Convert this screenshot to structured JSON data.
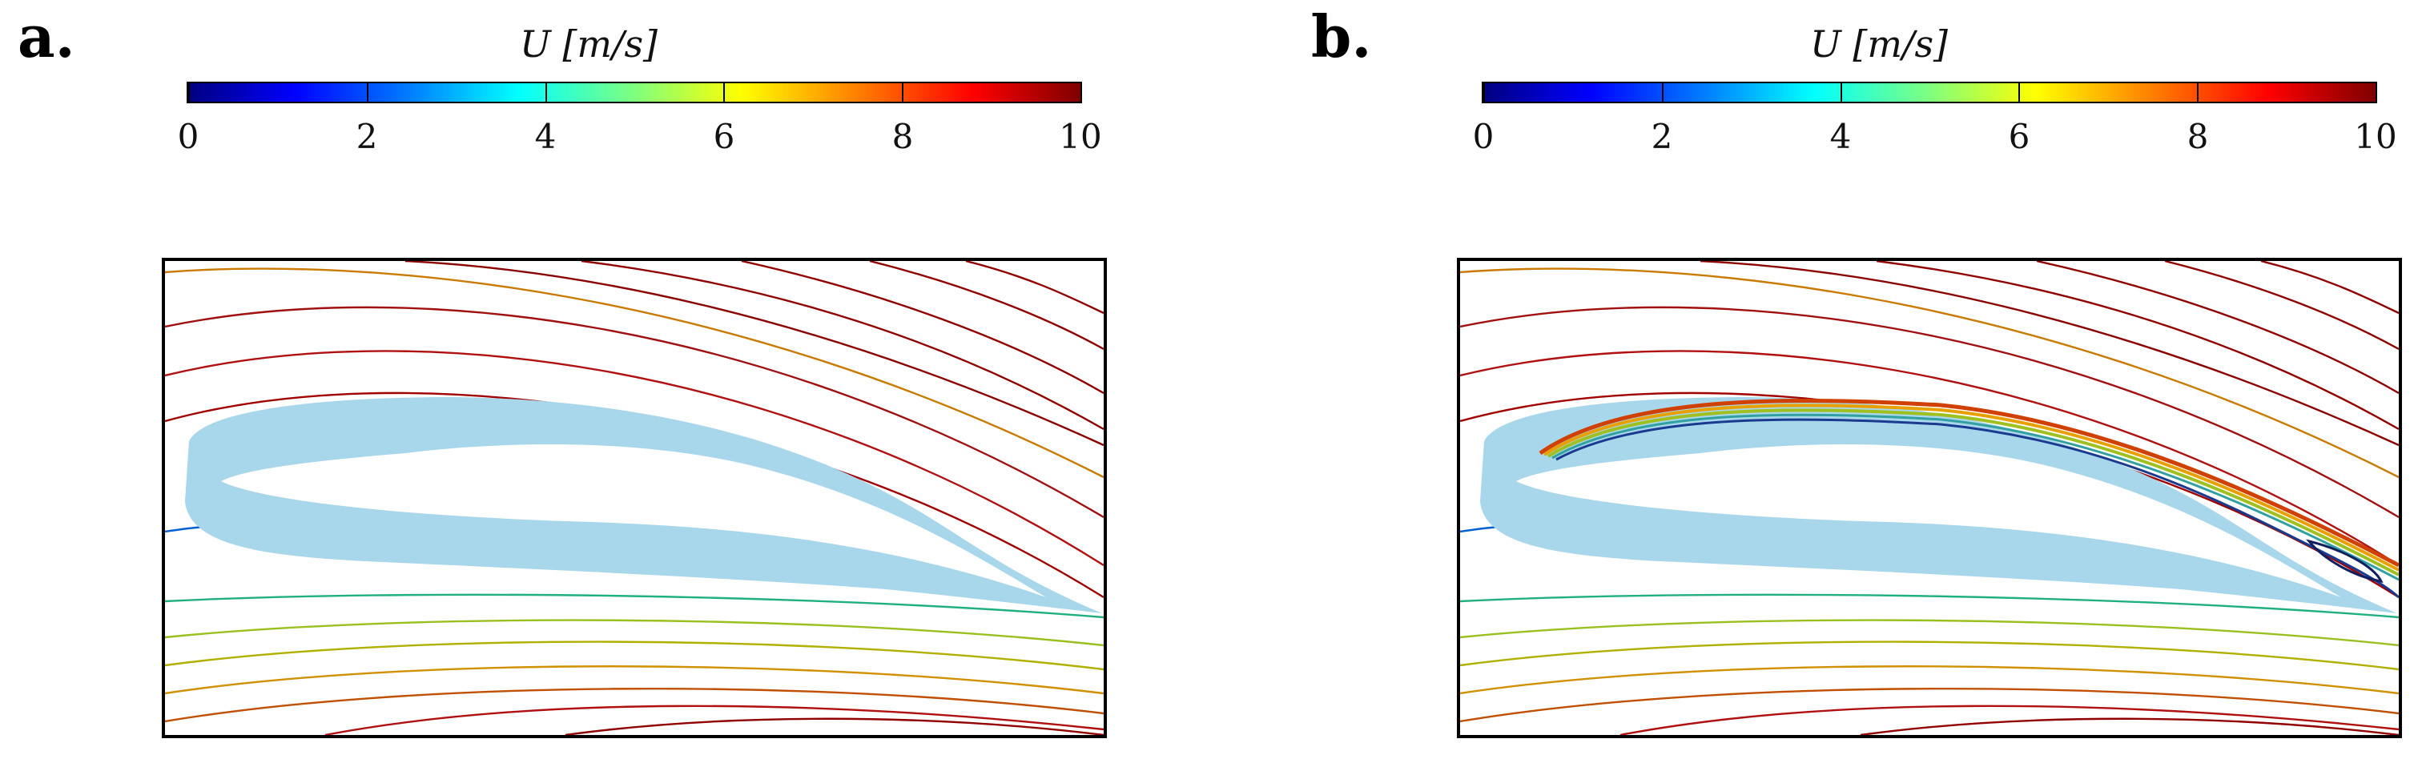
{
  "panels": [
    {
      "letter": "a.",
      "colorbar_title": "U [m/s]"
    },
    {
      "letter": "b.",
      "colorbar_title": "U [m/s]"
    }
  ],
  "colorbar": {
    "ticks": [
      "0",
      "2",
      "4",
      "6",
      "8",
      "10"
    ],
    "colormap": "jet",
    "min": 0,
    "max": 10
  },
  "colors": {
    "airfoil": "#a8d6ea",
    "frame": "#000000"
  }
}
